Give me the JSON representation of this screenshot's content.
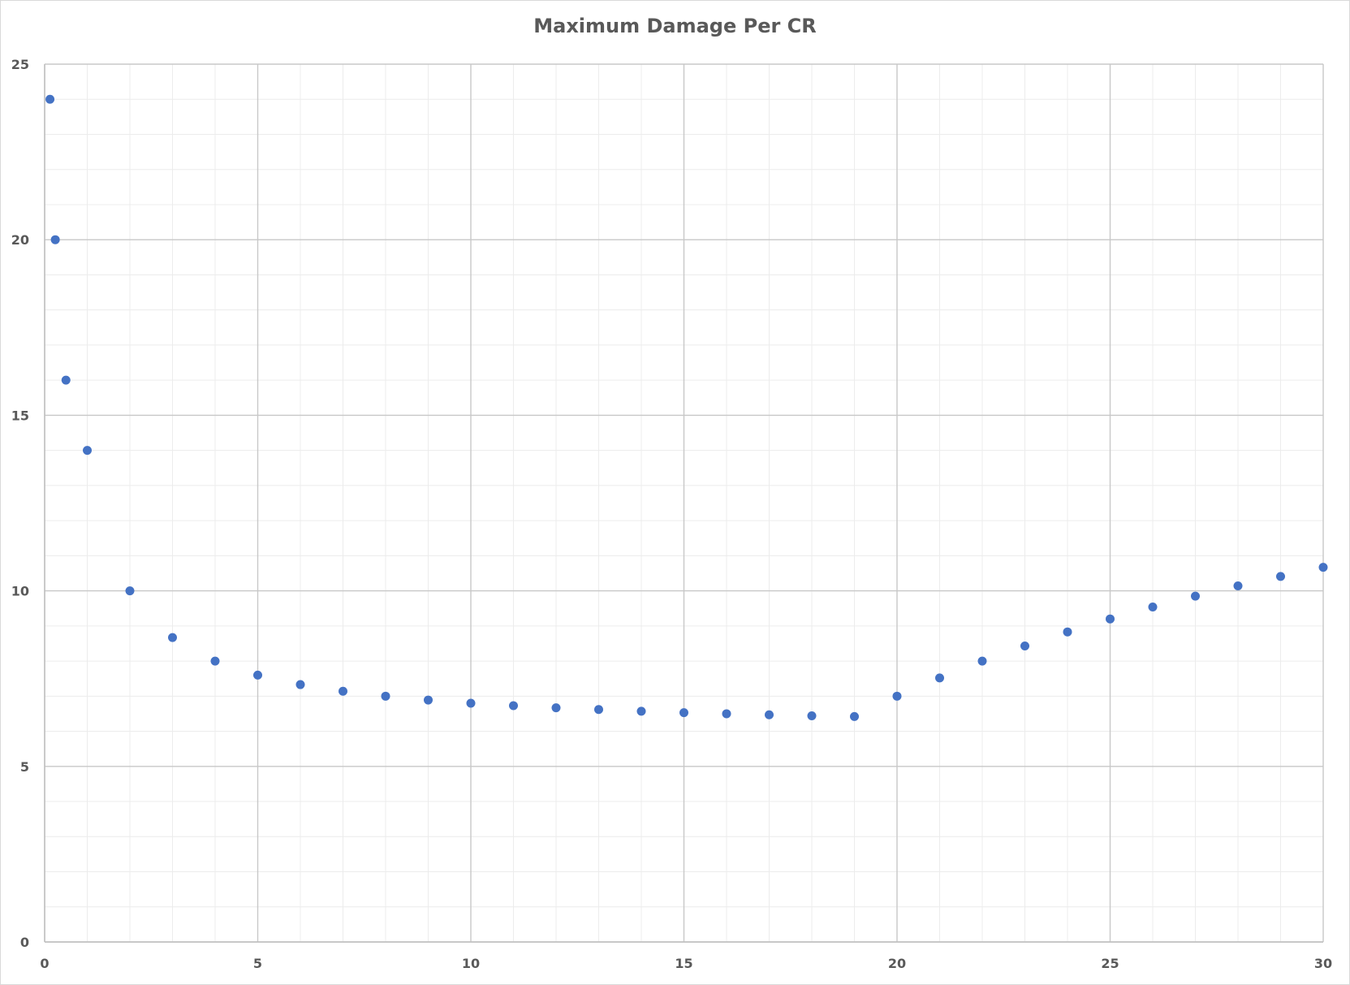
{
  "chart_data": {
    "type": "scatter",
    "title": "Maximum Damage Per CR",
    "xlabel": "",
    "ylabel": "",
    "xlim": [
      0,
      30
    ],
    "ylim": [
      0,
      25
    ],
    "x_major_ticks": [
      0,
      5,
      10,
      15,
      20,
      25,
      30
    ],
    "y_major_ticks": [
      0,
      5,
      10,
      15,
      20,
      25
    ],
    "x_minor_step": 1,
    "y_minor_step": 1,
    "grid": true,
    "legend": "none",
    "marker_color": "#4472C4",
    "series": [
      {
        "points": [
          {
            "x": 0.125,
            "y": 24
          },
          {
            "x": 0.25,
            "y": 20
          },
          {
            "x": 0.5,
            "y": 16
          },
          {
            "x": 1,
            "y": 14
          },
          {
            "x": 2,
            "y": 10
          },
          {
            "x": 3,
            "y": 8.67
          },
          {
            "x": 4,
            "y": 8
          },
          {
            "x": 5,
            "y": 7.6
          },
          {
            "x": 6,
            "y": 7.33
          },
          {
            "x": 7,
            "y": 7.14
          },
          {
            "x": 8,
            "y": 7
          },
          {
            "x": 9,
            "y": 6.89
          },
          {
            "x": 10,
            "y": 6.8
          },
          {
            "x": 11,
            "y": 6.73
          },
          {
            "x": 12,
            "y": 6.67
          },
          {
            "x": 13,
            "y": 6.62
          },
          {
            "x": 14,
            "y": 6.57
          },
          {
            "x": 15,
            "y": 6.53
          },
          {
            "x": 16,
            "y": 6.5
          },
          {
            "x": 17,
            "y": 6.47
          },
          {
            "x": 18,
            "y": 6.44
          },
          {
            "x": 19,
            "y": 6.42
          },
          {
            "x": 20,
            "y": 7
          },
          {
            "x": 21,
            "y": 7.52
          },
          {
            "x": 22,
            "y": 8
          },
          {
            "x": 23,
            "y": 8.43
          },
          {
            "x": 24,
            "y": 8.83
          },
          {
            "x": 25,
            "y": 9.2
          },
          {
            "x": 26,
            "y": 9.54
          },
          {
            "x": 27,
            "y": 9.85
          },
          {
            "x": 28,
            "y": 10.14
          },
          {
            "x": 29,
            "y": 10.41
          },
          {
            "x": 30,
            "y": 10.67
          }
        ]
      }
    ]
  }
}
